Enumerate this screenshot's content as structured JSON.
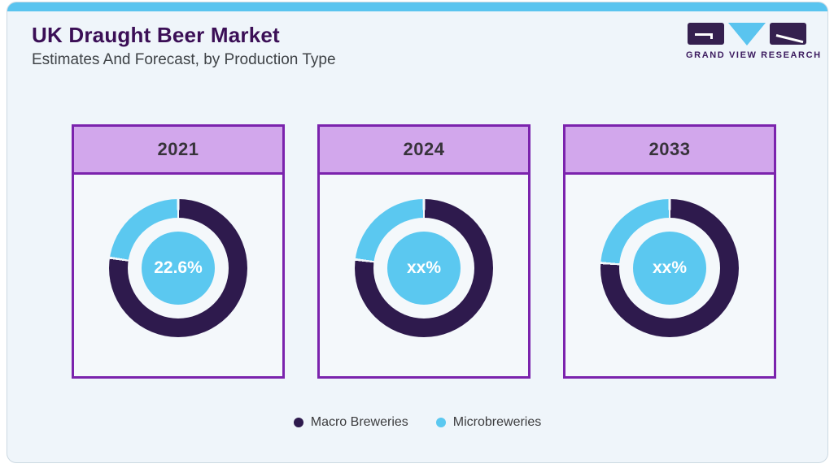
{
  "page": {
    "title": "UK Draught Beer Market",
    "subtitle": "Estimates And Forecast, by Production Type"
  },
  "logo": {
    "wordmark": "GRAND VIEW RESEARCH"
  },
  "colors": {
    "macro": "#2e1a4d",
    "micro": "#5bc8f0",
    "separator": "#f4f8fb",
    "topbar": "#5ac4ef",
    "panel_border": "#7b23ad",
    "panel_header_bg": "#d2a7ec",
    "panel_body_bg": "#f4f8fb",
    "card_bg": "#eff5fa",
    "title_text": "#3b0f56",
    "center_label_text": "#ffffff"
  },
  "legend": {
    "items": [
      {
        "key": "macro",
        "label": "Macro Breweries"
      },
      {
        "key": "micro",
        "label": "Microbreweries"
      }
    ]
  },
  "chart_data": {
    "type": "pie",
    "variant": "donut-multiples",
    "title": "UK Draught Beer Market",
    "subtitle": "Estimates And Forecast, by Production Type",
    "series_names": [
      "Macro Breweries",
      "Microbreweries"
    ],
    "legend_position": "bottom",
    "panels": [
      {
        "year": "2021",
        "center_label": "22.6%",
        "slices": [
          {
            "name": "Macro Breweries",
            "value_pct": 77.4
          },
          {
            "name": "Microbreweries",
            "value_pct": 22.6
          }
        ],
        "micro_pct_visual": 22.6
      },
      {
        "year": "2024",
        "center_label": "xx%",
        "slices": [
          {
            "name": "Macro Breweries",
            "value_pct": "xx"
          },
          {
            "name": "Microbreweries",
            "value_pct": "xx"
          }
        ],
        "micro_pct_visual": 23.0
      },
      {
        "year": "2033",
        "center_label": "xx%",
        "slices": [
          {
            "name": "Macro Breweries",
            "value_pct": "xx"
          },
          {
            "name": "Microbreweries",
            "value_pct": "xx"
          }
        ],
        "micro_pct_visual": 23.8
      }
    ]
  }
}
